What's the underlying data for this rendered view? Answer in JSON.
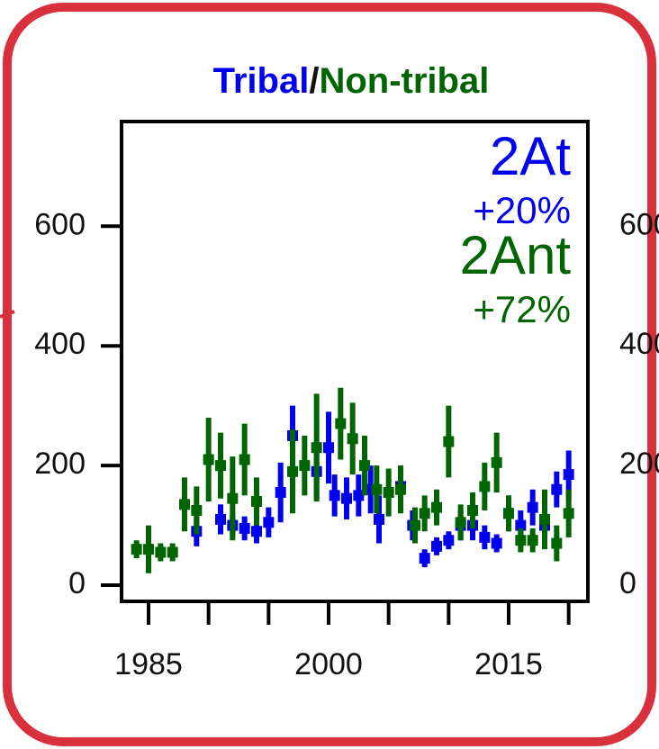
{
  "chart_data": {
    "type": "errorbar",
    "title_parts": [
      {
        "text": "Tribal",
        "color": "#0000ee"
      },
      {
        "text": "/",
        "color": "#111111"
      },
      {
        "text": "Non-tribal",
        "color": "#006400"
      }
    ],
    "xlim": [
      1982.75,
      2021.6
    ],
    "xticks": [
      1985,
      2000,
      2015
    ],
    "xminor_ticks": [
      1990,
      1995,
      2005,
      2010,
      2020
    ],
    "ylim": [
      -27,
      775
    ],
    "yticks": [
      0,
      200,
      400,
      600
    ],
    "annotations": [
      {
        "text": "2At",
        "color": "#0000ee"
      },
      {
        "text": "+20%",
        "color": "#0000ee"
      },
      {
        "text": "2Ant",
        "color": "#006400"
      },
      {
        "text": "+72%",
        "color": "#006400"
      }
    ],
    "series": [
      {
        "name": "Tribal",
        "color": "#0000ee",
        "x": [
          1989,
          1991,
          1992,
          1993,
          1994,
          1995,
          1996,
          1997,
          1999,
          2000,
          2000.5,
          2001.5,
          2002.5,
          2003.5,
          2004.2,
          2006,
          2007,
          2008,
          2009,
          2010,
          2011,
          2012,
          2013,
          2014,
          2015,
          2016,
          2017,
          2018,
          2019,
          2020
        ],
        "values": [
          90,
          110,
          100,
          95,
          90,
          105,
          155,
          250,
          190,
          230,
          150,
          145,
          150,
          160,
          110,
          165,
          100,
          45,
          65,
          75,
          100,
          100,
          80,
          70,
          120,
          100,
          130,
          100,
          160,
          185
        ],
        "errors": [
          25,
          25,
          20,
          20,
          20,
          25,
          50,
          50,
          45,
          60,
          35,
          35,
          35,
          40,
          40,
          35,
          25,
          15,
          15,
          15,
          25,
          25,
          20,
          15,
          30,
          25,
          30,
          25,
          30,
          40
        ]
      },
      {
        "name": "Non-tribal",
        "color": "#006400",
        "x": [
          1984,
          1985,
          1986,
          1987,
          1988,
          1989,
          1990,
          1991,
          1992,
          1993,
          1994,
          1997,
          1998,
          1999,
          2001,
          2002,
          2003,
          2004,
          2005,
          2006,
          2007.2,
          2008,
          2009,
          2010,
          2011,
          2012,
          2013,
          2014,
          2015,
          2016,
          2017,
          2018,
          2019,
          2020
        ],
        "values": [
          60,
          60,
          55,
          55,
          135,
          125,
          210,
          200,
          145,
          210,
          140,
          190,
          200,
          230,
          270,
          245,
          200,
          160,
          155,
          160,
          100,
          120,
          130,
          240,
          105,
          125,
          165,
          205,
          120,
          75,
          75,
          110,
          70,
          120
        ],
        "errors": [
          15,
          40,
          15,
          15,
          45,
          40,
          70,
          55,
          70,
          60,
          40,
          70,
          50,
          90,
          60,
          60,
          50,
          40,
          40,
          40,
          30,
          30,
          30,
          60,
          30,
          30,
          40,
          50,
          30,
          20,
          20,
          50,
          30,
          40
        ]
      }
    ]
  }
}
